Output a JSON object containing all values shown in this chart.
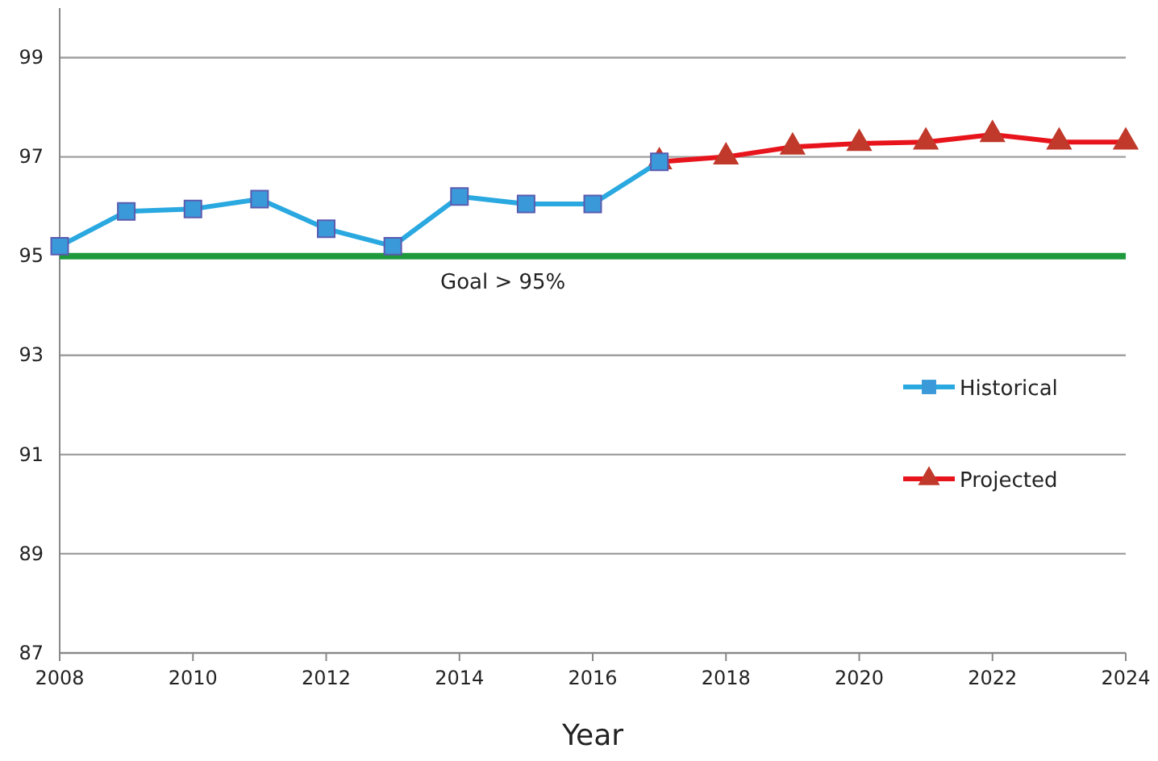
{
  "chart_data": {
    "type": "line",
    "xlabel": "Year",
    "x": [
      2008,
      2009,
      2010,
      2011,
      2012,
      2013,
      2014,
      2015,
      2016,
      2017
    ],
    "series": [
      {
        "name": "Historical",
        "color": "#2aa8e0",
        "marker": "square",
        "values": [
          95.2,
          95.9,
          95.95,
          96.15,
          95.55,
          95.2,
          96.2,
          96.05,
          96.05,
          96.9
        ]
      },
      {
        "name": "Projected",
        "color": "#e8141c",
        "marker": "triangle",
        "x": [
          2017,
          2018,
          2019,
          2020,
          2021,
          2022,
          2023,
          2024
        ],
        "values": [
          96.9,
          97.0,
          97.2,
          97.27,
          97.3,
          97.45,
          97.3,
          97.3
        ]
      }
    ],
    "xlim": [
      2008,
      2024
    ],
    "xticks": [
      2008,
      2010,
      2012,
      2014,
      2016,
      2018,
      2020,
      2022,
      2024
    ],
    "ylim": [
      87,
      100
    ],
    "yticks": [
      87,
      89,
      91,
      93,
      95,
      97,
      99
    ],
    "grid": "y",
    "legend": "right",
    "ref_lines": [
      {
        "axis": "y",
        "value": 95,
        "label": "Goal > 95%",
        "color": "#1e9a3c"
      }
    ]
  }
}
